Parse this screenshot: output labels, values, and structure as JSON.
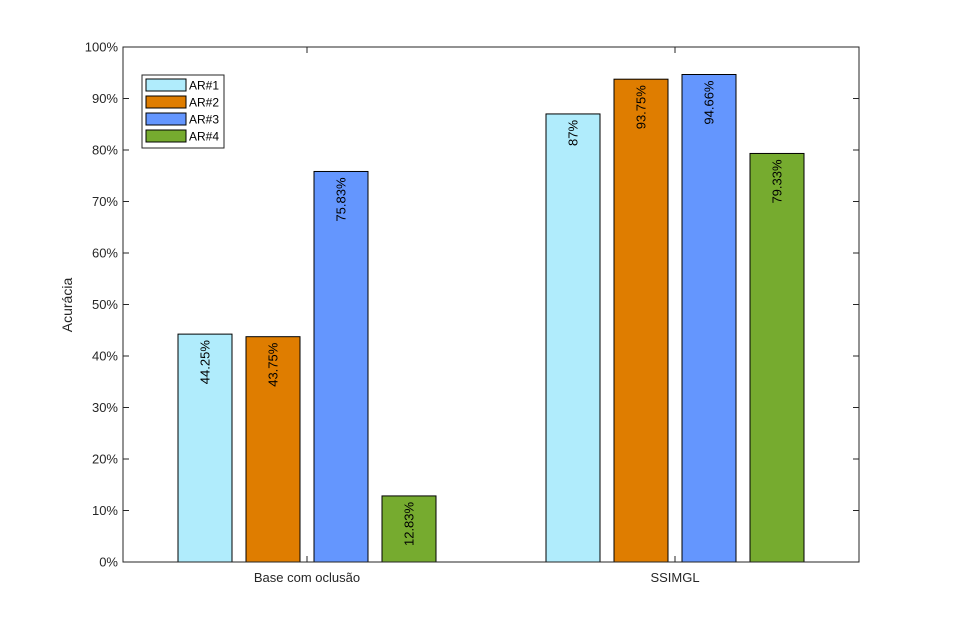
{
  "chart_data": {
    "type": "bar",
    "title": "",
    "xlabel": "",
    "ylabel": "Acurácia",
    "ylim": [
      0,
      100
    ],
    "y_ticks": [
      0,
      10,
      20,
      30,
      40,
      50,
      60,
      70,
      80,
      90,
      100
    ],
    "y_tick_labels": [
      "0%",
      "10%",
      "20%",
      "30%",
      "40%",
      "50%",
      "60%",
      "70%",
      "80%",
      "90%",
      "100%"
    ],
    "categories": [
      "Base com oclusão",
      "SSIMGL"
    ],
    "series": [
      {
        "name": "AR#1",
        "color": "#b0ecfc",
        "values": [
          44.25,
          87
        ],
        "labels": [
          "44.25%",
          "87%"
        ]
      },
      {
        "name": "AR#2",
        "color": "#df7d00",
        "values": [
          43.75,
          93.75
        ],
        "labels": [
          "43.75%",
          "93.75%"
        ]
      },
      {
        "name": "AR#3",
        "color": "#6496fe",
        "values": [
          75.83,
          94.66
        ],
        "labels": [
          "75.83%",
          "94.66%"
        ]
      },
      {
        "name": "AR#4",
        "color": "#76ab2f",
        "values": [
          12.83,
          79.33
        ],
        "labels": [
          "12.83%",
          "79.33%"
        ]
      }
    ],
    "grid": false,
    "legend_position": "top-left"
  }
}
